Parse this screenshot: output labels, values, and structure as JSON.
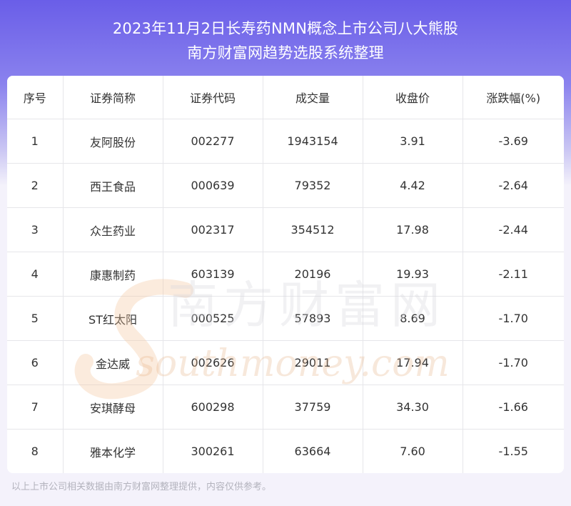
{
  "title_line1": "2023年11月2日长寿药NMN概念上市公司八大熊股",
  "title_line2": "南方财富网趋势选股系统整理",
  "table": {
    "headers": [
      "序号",
      "证券简称",
      "证券代码",
      "成交量",
      "收盘价",
      "涨跌幅(%)"
    ],
    "rows": [
      [
        "1",
        "友阿股份",
        "002277",
        "1943154",
        "3.91",
        "-3.69"
      ],
      [
        "2",
        "西王食品",
        "000639",
        "79352",
        "4.42",
        "-2.64"
      ],
      [
        "3",
        "众生药业",
        "002317",
        "354512",
        "17.98",
        "-2.44"
      ],
      [
        "4",
        "康惠制药",
        "603139",
        "20196",
        "19.93",
        "-2.11"
      ],
      [
        "5",
        "ST红太阳",
        "000525",
        "57893",
        "8.69",
        "-1.70"
      ],
      [
        "6",
        "金达威",
        "002626",
        "29011",
        "17.94",
        "-1.70"
      ],
      [
        "7",
        "安琪酵母",
        "600298",
        "37759",
        "34.30",
        "-1.66"
      ],
      [
        "8",
        "雅本化学",
        "300261",
        "63664",
        "7.60",
        "-1.55"
      ]
    ]
  },
  "watermark": {
    "cn": "南方财富网",
    "en": "southmoney.com"
  },
  "footer": "以上上市公司相关数据由南方财富网整理提供，内容仅供参考。"
}
